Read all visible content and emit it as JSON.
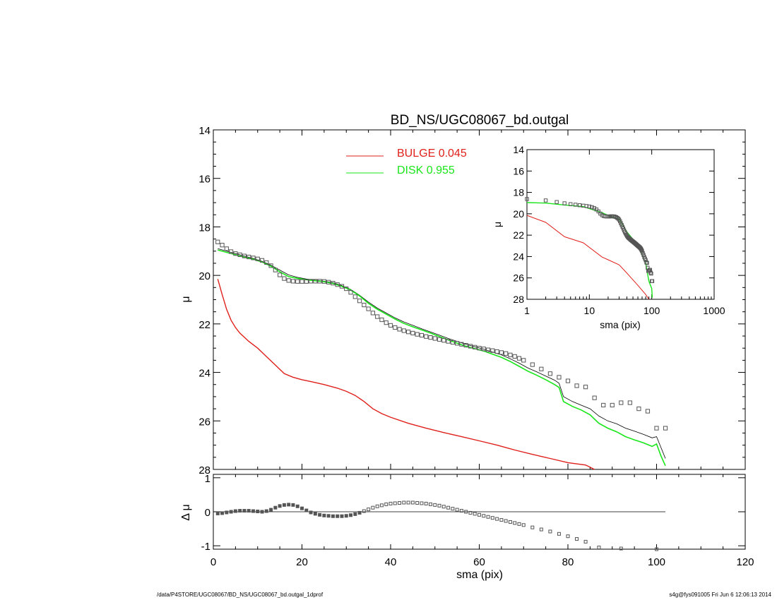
{
  "colors": {
    "bulge": "#e0201b",
    "disk": "#19e619",
    "data": "#555555",
    "model": "#000000",
    "axis": "#000000"
  },
  "footer": {
    "left": "/data/P4STORE/UGC08067/BD_NS/UGC08067_bd.outgal_1dprof",
    "right": "s4g@fys091005  Fri Jun  6 12:06:13 2014"
  },
  "chart_data": [
    {
      "type": "line",
      "panel": "main",
      "title": "BD_NS/UGC08067_bd.outgal",
      "xlabel": "",
      "ylabel": "μ",
      "xlim": [
        0,
        120
      ],
      "ylim": [
        28,
        14
      ],
      "x_ticks": [
        0,
        20,
        40,
        60,
        80,
        100,
        120
      ],
      "y_ticks": [
        14,
        16,
        18,
        20,
        22,
        24,
        26,
        28
      ],
      "legend": {
        "placement": "top-center",
        "entries": [
          {
            "text": "BULGE  0.045",
            "series": "bulge"
          },
          {
            "text": "DISK  0.955",
            "series": "disk"
          }
        ]
      },
      "data_points": {
        "x": [
          1,
          2,
          3,
          4,
          5,
          6,
          7,
          8,
          9,
          10,
          11,
          12,
          13,
          14,
          15,
          16,
          17,
          18,
          19,
          20,
          21,
          22,
          23,
          24,
          25,
          26,
          27,
          28,
          29,
          30,
          31,
          32,
          33,
          34,
          35,
          36,
          37,
          38,
          39,
          40,
          41,
          42,
          43,
          44,
          45,
          46,
          47,
          48,
          49,
          50,
          51,
          52,
          53,
          54,
          55,
          56,
          57,
          58,
          59,
          60,
          61,
          62,
          63,
          64,
          65,
          66,
          67,
          68,
          69,
          70,
          72,
          74,
          76,
          78,
          80,
          82,
          84,
          86,
          88,
          90,
          92,
          94,
          96,
          98,
          100,
          102
        ],
        "y": [
          18.62,
          18.75,
          18.9,
          19.02,
          19.1,
          19.15,
          19.2,
          19.24,
          19.28,
          19.32,
          19.38,
          19.47,
          19.6,
          19.78,
          19.98,
          20.13,
          20.21,
          20.24,
          20.25,
          20.25,
          20.25,
          20.24,
          20.24,
          20.24,
          20.25,
          20.28,
          20.32,
          20.38,
          20.45,
          20.55,
          20.7,
          20.88,
          21.05,
          21.22,
          21.38,
          21.55,
          21.7,
          21.83,
          21.95,
          22.06,
          22.15,
          22.22,
          22.28,
          22.33,
          22.38,
          22.43,
          22.47,
          22.52,
          22.56,
          22.6,
          22.64,
          22.68,
          22.72,
          22.76,
          22.8,
          22.84,
          22.88,
          22.92,
          22.96,
          23.0,
          23.03,
          23.07,
          23.1,
          23.14,
          23.18,
          23.22,
          23.28,
          23.34,
          23.42,
          23.5,
          23.68,
          23.86,
          24.05,
          24.2,
          24.35,
          24.55,
          24.6,
          25.05,
          25.35,
          25.35,
          25.25,
          25.25,
          25.5,
          25.6,
          26.3,
          26.3
        ]
      },
      "series": [
        {
          "key": "bulge",
          "x": [
            1,
            2,
            3,
            4,
            5,
            6,
            8,
            10,
            12,
            14,
            16,
            18,
            20,
            22,
            25,
            28,
            30,
            32,
            34,
            36,
            38,
            40,
            44,
            48,
            52,
            56,
            60,
            64,
            68,
            72,
            76,
            80,
            84,
            86
          ],
          "y": [
            20.15,
            20.8,
            21.4,
            21.85,
            22.15,
            22.38,
            22.72,
            23.0,
            23.35,
            23.7,
            24.05,
            24.2,
            24.3,
            24.38,
            24.5,
            24.65,
            24.78,
            24.95,
            25.2,
            25.5,
            25.7,
            25.85,
            26.1,
            26.3,
            26.48,
            26.65,
            26.82,
            27.0,
            27.2,
            27.38,
            27.55,
            27.72,
            27.82,
            28.0
          ]
        },
        {
          "key": "disk",
          "x": [
            1,
            3,
            5,
            7,
            9,
            11,
            13,
            15,
            17,
            19,
            21,
            23,
            25,
            27,
            29,
            31,
            33,
            35,
            37,
            39,
            41,
            43,
            45,
            47,
            49,
            51,
            53,
            55,
            57,
            59,
            61,
            63,
            65,
            67,
            69,
            71,
            73,
            75,
            77,
            78,
            79,
            81,
            83,
            85,
            87,
            89,
            91,
            93,
            95,
            97,
            99,
            100,
            101,
            102
          ],
          "y": [
            18.95,
            19.05,
            19.15,
            19.25,
            19.33,
            19.45,
            19.62,
            19.85,
            20.05,
            20.12,
            20.18,
            20.22,
            20.26,
            20.33,
            20.45,
            20.6,
            20.85,
            21.15,
            21.4,
            21.6,
            21.8,
            21.98,
            22.12,
            22.25,
            22.38,
            22.52,
            22.66,
            22.8,
            22.92,
            23.02,
            23.12,
            23.25,
            23.38,
            23.55,
            23.75,
            23.95,
            24.12,
            24.3,
            24.5,
            24.62,
            25.2,
            25.4,
            25.55,
            25.75,
            26.1,
            26.3,
            26.45,
            26.65,
            26.78,
            26.9,
            27.05,
            26.95,
            27.45,
            27.85
          ]
        },
        {
          "key": "model",
          "x": [
            1,
            3,
            5,
            7,
            9,
            11,
            13,
            15,
            17,
            19,
            21,
            23,
            25,
            27,
            29,
            31,
            33,
            35,
            37,
            39,
            41,
            43,
            45,
            47,
            49,
            51,
            53,
            55,
            57,
            59,
            61,
            63,
            65,
            67,
            69,
            71,
            73,
            75,
            77,
            78,
            79,
            81,
            83,
            85,
            87,
            89,
            91,
            93,
            95,
            97,
            99,
            100,
            101,
            102
          ],
          "y": [
            18.9,
            19.0,
            19.1,
            19.2,
            19.3,
            19.42,
            19.58,
            19.78,
            19.98,
            20.08,
            20.15,
            20.2,
            20.24,
            20.3,
            20.42,
            20.58,
            20.82,
            21.1,
            21.35,
            21.55,
            21.75,
            21.92,
            22.06,
            22.2,
            22.33,
            22.46,
            22.6,
            22.72,
            22.84,
            22.94,
            23.04,
            23.16,
            23.28,
            23.44,
            23.62,
            23.82,
            23.98,
            24.15,
            24.32,
            24.45,
            25.0,
            25.2,
            25.35,
            25.5,
            25.8,
            26.0,
            26.12,
            26.3,
            26.42,
            26.55,
            26.7,
            26.65,
            27.1,
            27.55
          ]
        }
      ]
    },
    {
      "type": "line",
      "panel": "inset",
      "xlabel": "sma (pix)",
      "ylabel": "μ",
      "xscale": "log",
      "xlim": [
        1,
        1000
      ],
      "ylim": [
        28,
        14
      ],
      "x_ticks": [
        1,
        10,
        100,
        1000
      ],
      "y_ticks": [
        14,
        16,
        18,
        20,
        22,
        24,
        26,
        28
      ],
      "series": [
        {
          "key": "bulge",
          "x": [
            1,
            2,
            4,
            8,
            16,
            20,
            30,
            40,
            60,
            80,
            90
          ],
          "y": [
            20.15,
            20.8,
            22.15,
            22.72,
            24.05,
            24.3,
            24.78,
            25.55,
            26.7,
            27.55,
            28.0
          ]
        },
        {
          "key": "disk",
          "x": [
            1,
            2,
            4,
            8,
            16,
            20,
            30,
            40,
            60,
            80,
            90,
            100,
            102
          ],
          "y": [
            18.95,
            19.0,
            19.18,
            19.33,
            19.9,
            20.15,
            20.5,
            21.7,
            22.95,
            24.62,
            26.3,
            27.0,
            27.85
          ]
        }
      ]
    },
    {
      "type": "scatter",
      "panel": "residual",
      "xlabel": "sma (pix)",
      "ylabel": "Δ μ",
      "xlim": [
        0,
        120
      ],
      "ylim": [
        -1.1,
        1.1
      ],
      "x_ticks": [
        0,
        20,
        40,
        60,
        80,
        100,
        120
      ],
      "y_ticks": [
        -1,
        0,
        1
      ],
      "zero_line_to": 102,
      "points": {
        "x": [
          1,
          2,
          3,
          4,
          5,
          6,
          7,
          8,
          9,
          10,
          11,
          12,
          13,
          14,
          15,
          16,
          17,
          18,
          19,
          20,
          21,
          22,
          23,
          24,
          25,
          26,
          27,
          28,
          29,
          30,
          31,
          32,
          33,
          34,
          35,
          36,
          37,
          38,
          39,
          40,
          41,
          42,
          43,
          44,
          45,
          46,
          47,
          48,
          49,
          50,
          51,
          52,
          53,
          54,
          55,
          56,
          57,
          58,
          59,
          60,
          61,
          62,
          63,
          64,
          65,
          66,
          67,
          68,
          69,
          70,
          72,
          74,
          76,
          78,
          80,
          82,
          84,
          87,
          92,
          100
        ],
        "y": [
          -0.05,
          -0.04,
          -0.02,
          0.0,
          0.02,
          0.03,
          0.03,
          0.03,
          0.02,
          0.01,
          0.0,
          0.02,
          0.06,
          0.12,
          0.17,
          0.2,
          0.21,
          0.2,
          0.16,
          0.1,
          0.04,
          -0.02,
          -0.06,
          -0.09,
          -0.11,
          -0.12,
          -0.13,
          -0.13,
          -0.13,
          -0.12,
          -0.1,
          -0.07,
          -0.03,
          0.02,
          0.07,
          0.12,
          0.16,
          0.19,
          0.22,
          0.24,
          0.25,
          0.26,
          0.27,
          0.27,
          0.27,
          0.26,
          0.25,
          0.24,
          0.22,
          0.2,
          0.18,
          0.15,
          0.12,
          0.09,
          0.06,
          0.03,
          0.0,
          -0.03,
          -0.06,
          -0.09,
          -0.12,
          -0.15,
          -0.18,
          -0.21,
          -0.24,
          -0.27,
          -0.3,
          -0.33,
          -0.36,
          -0.39,
          -0.46,
          -0.52,
          -0.58,
          -0.65,
          -0.72,
          -0.8,
          -0.88,
          -1.05,
          -1.08,
          -1.1
        ]
      }
    }
  ]
}
